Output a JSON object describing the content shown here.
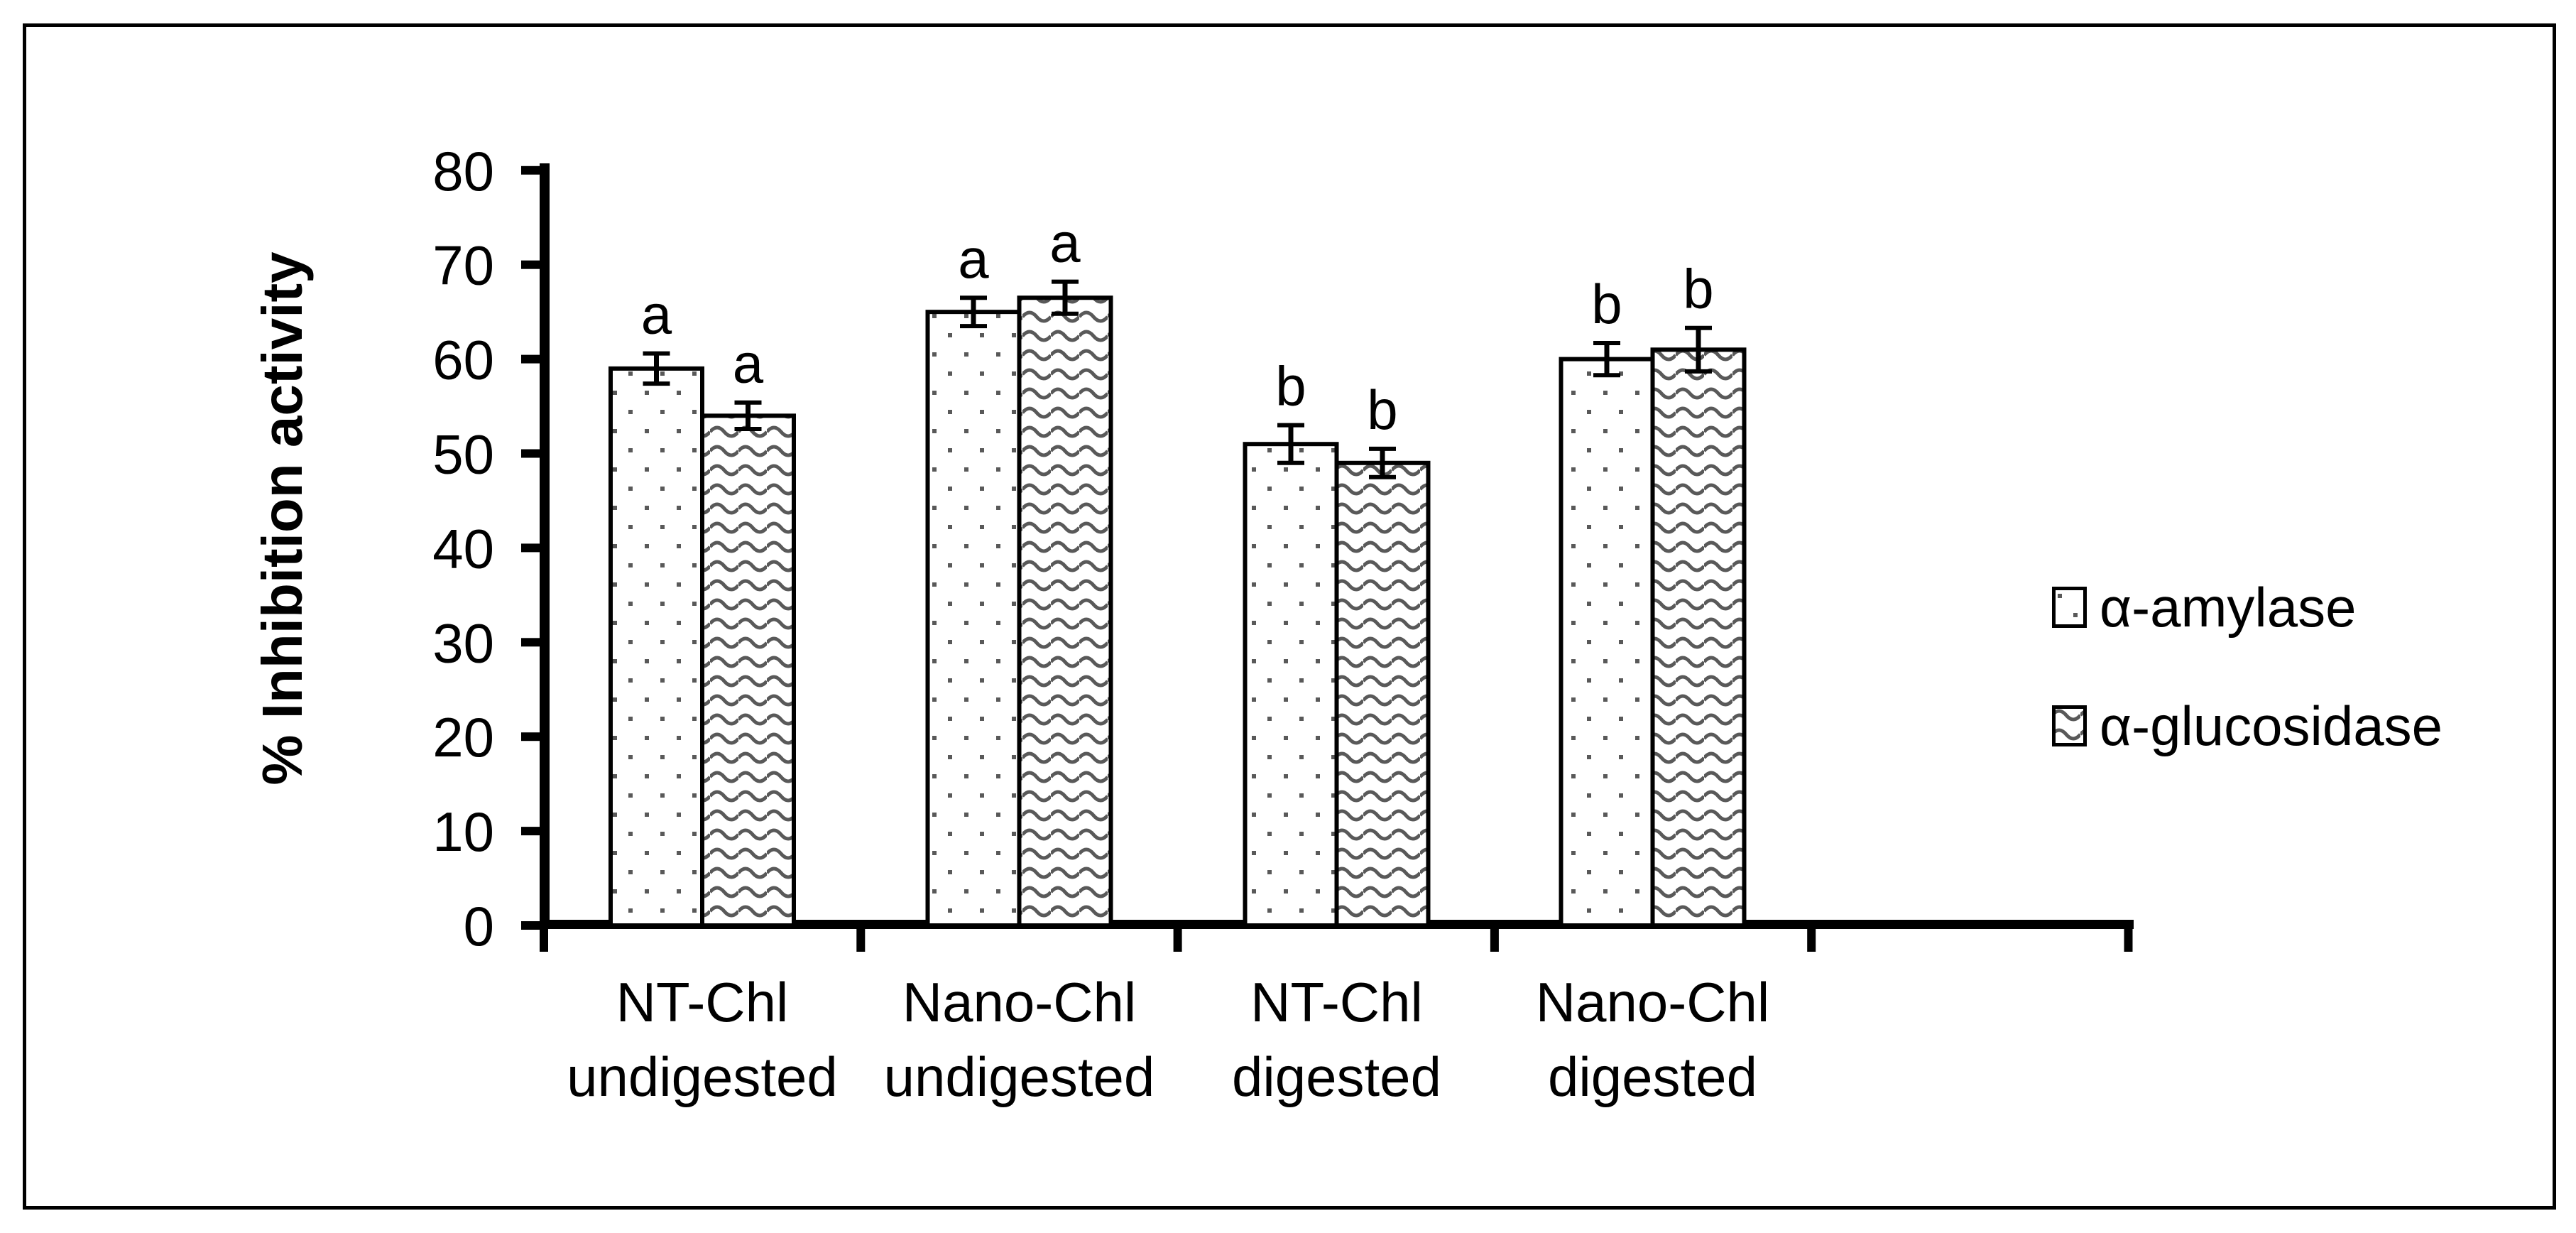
{
  "figure": {
    "background": "#ffffff",
    "border_color": "#000000"
  },
  "chart_data": {
    "type": "bar",
    "title": "",
    "xlabel": "",
    "ylabel": "% Inhibition activity",
    "ylim": [
      0,
      80
    ],
    "yticks": [
      0,
      10,
      20,
      30,
      40,
      50,
      60,
      70,
      80
    ],
    "grid": false,
    "legend_position": "right",
    "categories": [
      {
        "line1": "NT-Chl",
        "line2": "undigested"
      },
      {
        "line1": "Nano-Chl",
        "line2": "undigested"
      },
      {
        "line1": "NT-Chl",
        "line2": "digested"
      },
      {
        "line1": "Nano-Chl",
        "line2": "digested"
      }
    ],
    "series": [
      {
        "name": "α-amylase",
        "pattern": "dots",
        "values": [
          59,
          65,
          51,
          60
        ],
        "errors": [
          1.6,
          1.5,
          2.0,
          1.7
        ],
        "sig_letters": [
          "a",
          "a",
          "b",
          "b"
        ]
      },
      {
        "name": "α-glucosidase",
        "pattern": "waves",
        "values": [
          54,
          66.5,
          49,
          61
        ],
        "errors": [
          1.4,
          1.7,
          1.5,
          2.3
        ],
        "sig_letters": [
          "a",
          "a",
          "b",
          "b"
        ]
      }
    ],
    "pattern_color": "#595959",
    "bar_fill_background": "#ffffff",
    "bar_outline_color": "#000000",
    "axis_color": "#000000",
    "text_color": "#000000"
  },
  "legend": {
    "items": [
      {
        "label": "α-amylase",
        "pattern": "dots"
      },
      {
        "label": "α-glucosidase",
        "pattern": "waves"
      }
    ]
  }
}
